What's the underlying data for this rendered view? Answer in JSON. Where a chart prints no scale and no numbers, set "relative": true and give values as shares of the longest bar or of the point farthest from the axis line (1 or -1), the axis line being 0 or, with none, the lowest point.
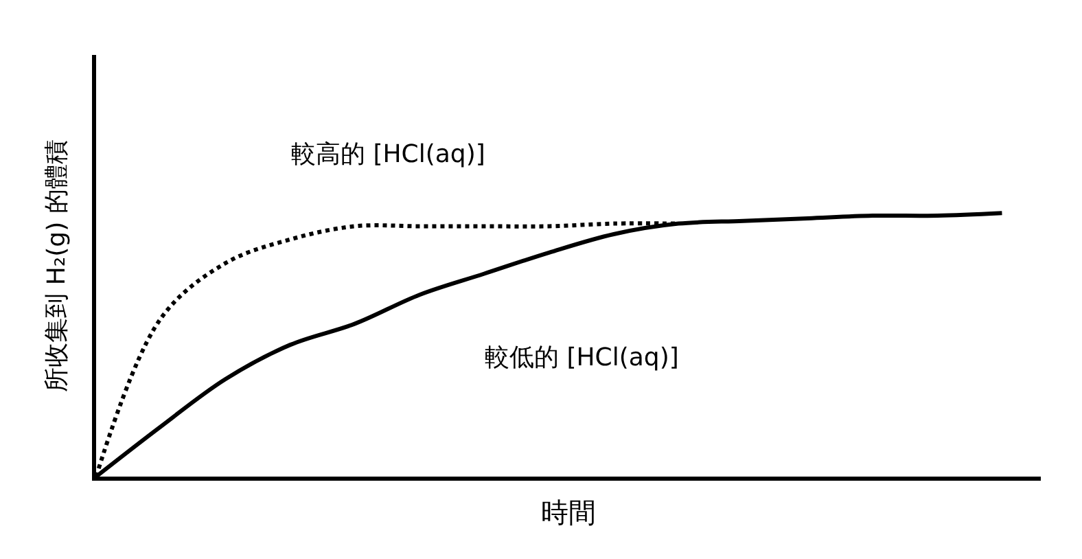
{
  "chart_data": {
    "type": "line",
    "relative": true,
    "xlabel": "時間",
    "ylabel": "所收集到 H₂(g) 的體積",
    "categories": [
      null,
      null,
      null,
      null,
      null,
      null,
      null,
      null,
      null,
      null,
      null,
      null,
      null,
      null,
      null
    ],
    "series": [
      {
        "color": "#000000",
        "line_style": "dotted",
        "values": [
          0,
          0.6,
          0.81,
          0.9,
          0.95,
          0.95,
          0.95,
          0.95,
          0.96,
          0.96,
          null,
          null,
          null,
          null,
          null
        ]
      },
      {
        "color": "#000000",
        "line_style": "solid",
        "values": [
          0,
          0.19,
          0.37,
          0.5,
          0.58,
          0.69,
          0.77,
          0.85,
          0.92,
          0.96,
          0.97,
          0.98,
          0.99,
          0.99,
          1
        ]
      }
    ],
    "annotations": [
      "較高的 [HCl(aq)]",
      "較低的 [HCl(aq)]"
    ],
    "marker": "none"
  }
}
